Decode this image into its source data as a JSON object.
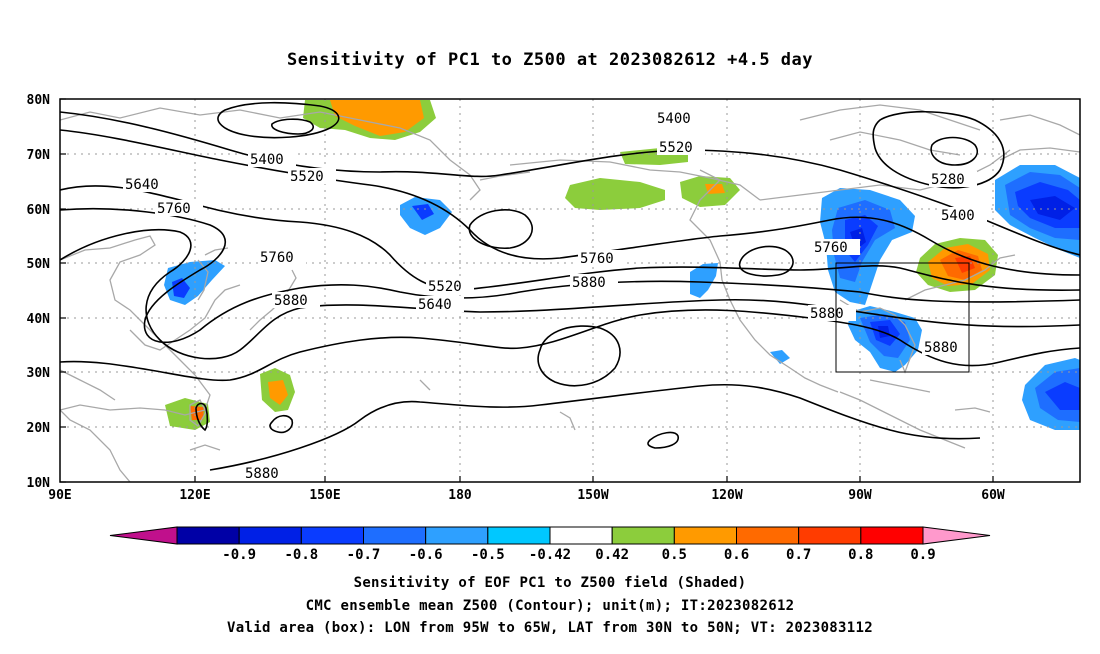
{
  "title": "Sensitivity of PC1 to Z500 at 2023082612 +4.5 day",
  "axes": {
    "lat_labels": [
      "80N",
      "70N",
      "60N",
      "50N",
      "40N",
      "30N",
      "20N",
      "10N"
    ],
    "lon_labels": [
      "90E",
      "120E",
      "150E",
      "180",
      "150W",
      "120W",
      "90W",
      "60W"
    ]
  },
  "contour_labels": [
    "5400",
    "5520",
    "5640",
    "5760",
    "5880",
    "5280"
  ],
  "colorbar": {
    "labels": [
      "-0.9",
      "-0.8",
      "-0.7",
      "-0.6",
      "-0.5",
      "-0.42",
      "0.42",
      "0.5",
      "0.6",
      "0.7",
      "0.8",
      "0.9"
    ],
    "colors": [
      "#c0108c",
      "#0000a6",
      "#0020e6",
      "#0a3cff",
      "#1e6eff",
      "#2ea0ff",
      "#00c8ff",
      "#ffffff",
      "#8ccd3c",
      "#ff9a00",
      "#ff6a00",
      "#ff3c00",
      "#ff0000",
      "#ff99cc"
    ]
  },
  "captions": {
    "line1": "Sensitivity of EOF PC1 to Z500 field (Shaded)",
    "line2": "CMC ensemble mean Z500 (Contour); unit(m); IT:2023082612",
    "line3": "Valid area (box): LON from 95W to 65W, LAT from 30N to 50N; VT: 2023083112"
  },
  "valid_box": {
    "lon": [
      "95W",
      "65W"
    ],
    "lat": [
      "30N",
      "50N"
    ]
  }
}
